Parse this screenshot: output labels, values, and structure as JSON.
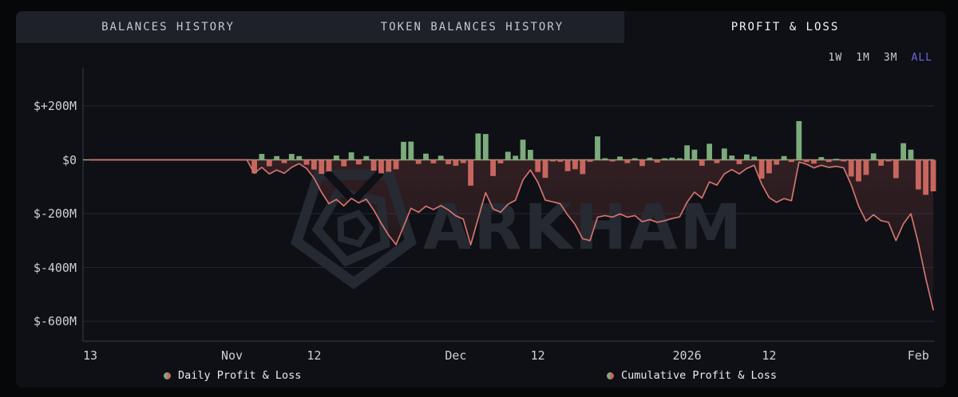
{
  "tabs": [
    {
      "label": "BALANCES HISTORY",
      "active": false
    },
    {
      "label": "TOKEN BALANCES HISTORY",
      "active": false
    },
    {
      "label": "PROFIT & LOSS",
      "active": true
    }
  ],
  "time_range": {
    "options": [
      "1W",
      "1M",
      "3M",
      "ALL"
    ],
    "selected": "ALL"
  },
  "watermark": "ARKHAM",
  "legend": [
    {
      "label": "Daily Profit & Loss"
    },
    {
      "label": "Cumulative Profit & Loss"
    }
  ],
  "colors": {
    "panel_bg": "#0e1016",
    "outer_bg": "#060709",
    "tab_strip_bg": "#1e2127",
    "accent_purple": "#6d67d9",
    "bar_green": "#7cab7c",
    "bar_red": "#c7665f",
    "line_red": "#d3746d",
    "zero_line": "#a6a378",
    "grid": "#232732",
    "axis": "#363b47",
    "watermark": "#272b33",
    "area_fill": "#c25b55"
  },
  "chart_data": {
    "type": "bar",
    "title": "Profit & Loss",
    "ylabel": "",
    "xlabel": "",
    "grid": true,
    "legend_position": "bottom",
    "y_ticks": [
      {
        "label": "$+200M",
        "value": 200
      },
      {
        "label": "$0",
        "value": 0
      },
      {
        "label": "$-200M",
        "value": -200
      },
      {
        "label": "$-400M",
        "value": -400
      },
      {
        "label": "$-600M",
        "value": -600
      }
    ],
    "ylim": [
      -674,
      342
    ],
    "x_ticks": [
      {
        "label": "13",
        "day": 0
      },
      {
        "label": "Nov",
        "day": 19
      },
      {
        "label": "12",
        "day": 30
      },
      {
        "label": "Dec",
        "day": 49
      },
      {
        "label": "12",
        "day": 60
      },
      {
        "label": "2026",
        "day": 80
      },
      {
        "label": "12",
        "day": 91
      },
      {
        "label": "Feb",
        "day": 111
      }
    ],
    "units": "USD millions",
    "series": [
      {
        "name": "Daily Profit & Loss",
        "type": "bar",
        "values": [
          0,
          0,
          0,
          0,
          0,
          0,
          0,
          0,
          0,
          0,
          0,
          0,
          0,
          0,
          0,
          0,
          0,
          0,
          0,
          0,
          0,
          0,
          -50,
          22,
          -24,
          14,
          -12,
          22,
          14,
          -18,
          -36,
          -52,
          -43,
          16,
          -24,
          28,
          -17,
          14,
          -40,
          -50,
          -44,
          -35,
          67,
          68,
          -15,
          23,
          -13,
          15,
          -16,
          -22,
          -12,
          -96,
          98,
          96,
          -60,
          -13,
          30,
          15,
          75,
          37,
          -45,
          -67,
          -6,
          -7,
          -42,
          -35,
          -53,
          -7,
          87,
          6,
          -6,
          12,
          -12,
          6,
          -23,
          8,
          -10,
          6,
          8,
          6,
          54,
          38,
          -22,
          60,
          -12,
          42,
          16,
          -16,
          20,
          12,
          -70,
          -50,
          -18,
          14,
          -8,
          144,
          -8,
          -14,
          10,
          -8,
          4,
          -6,
          -62,
          -80,
          -56,
          24,
          -22,
          -6,
          -68,
          62,
          38,
          -110,
          -130,
          -117
        ]
      },
      {
        "name": "Cumulative Profit & Loss",
        "type": "line",
        "values": [
          0,
          0,
          0,
          0,
          0,
          0,
          0,
          0,
          0,
          0,
          0,
          0,
          0,
          0,
          0,
          0,
          0,
          0,
          0,
          0,
          0,
          0,
          -50,
          -28,
          -52,
          -38,
          -50,
          -28,
          -14,
          -32,
          -68,
          -120,
          -163,
          -147,
          -171,
          -143,
          -160,
          -146,
          -186,
          -236,
          -280,
          -315,
          -248,
          -180,
          -195,
          -172,
          -185,
          -170,
          -186,
          -208,
          -220,
          -316,
          -218,
          -122,
          -182,
          -195,
          -165,
          -150,
          -75,
          -38,
          -83,
          -150,
          -156,
          -163,
          -205,
          -240,
          -293,
          -300,
          -213,
          -207,
          -213,
          -201,
          -213,
          -207,
          -230,
          -222,
          -232,
          -226,
          -218,
          -212,
          -158,
          -120,
          -142,
          -82,
          -94,
          -52,
          -36,
          -52,
          -32,
          -20,
          -90,
          -140,
          -158,
          -144,
          -152,
          -8,
          -16,
          -30,
          -20,
          -28,
          -24,
          -30,
          -92,
          -172,
          -228,
          -204,
          -226,
          -232,
          -300,
          -238,
          -200,
          -310,
          -440,
          -557
        ]
      }
    ]
  }
}
